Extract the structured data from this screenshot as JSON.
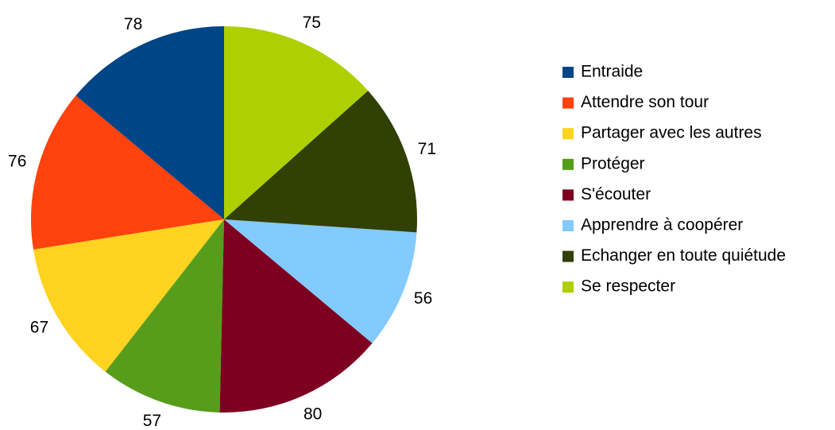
{
  "chart_data": {
    "type": "pie",
    "categories": [
      "Entraide",
      "Attendre son tour",
      "Partager avec les autres",
      "Protéger",
      "S'écouter",
      "Apprendre à coopérer",
      "Echanger en toute quiétude",
      "Se respecter"
    ],
    "values": [
      78,
      76,
      67,
      57,
      80,
      56,
      71,
      75
    ],
    "colors": [
      "#004586",
      "#ff420e",
      "#ffd320",
      "#579d1c",
      "#7e0021",
      "#83caff",
      "#314004",
      "#aecf00"
    ],
    "direction": "counterclockwise",
    "start": "top",
    "legend": "right"
  }
}
